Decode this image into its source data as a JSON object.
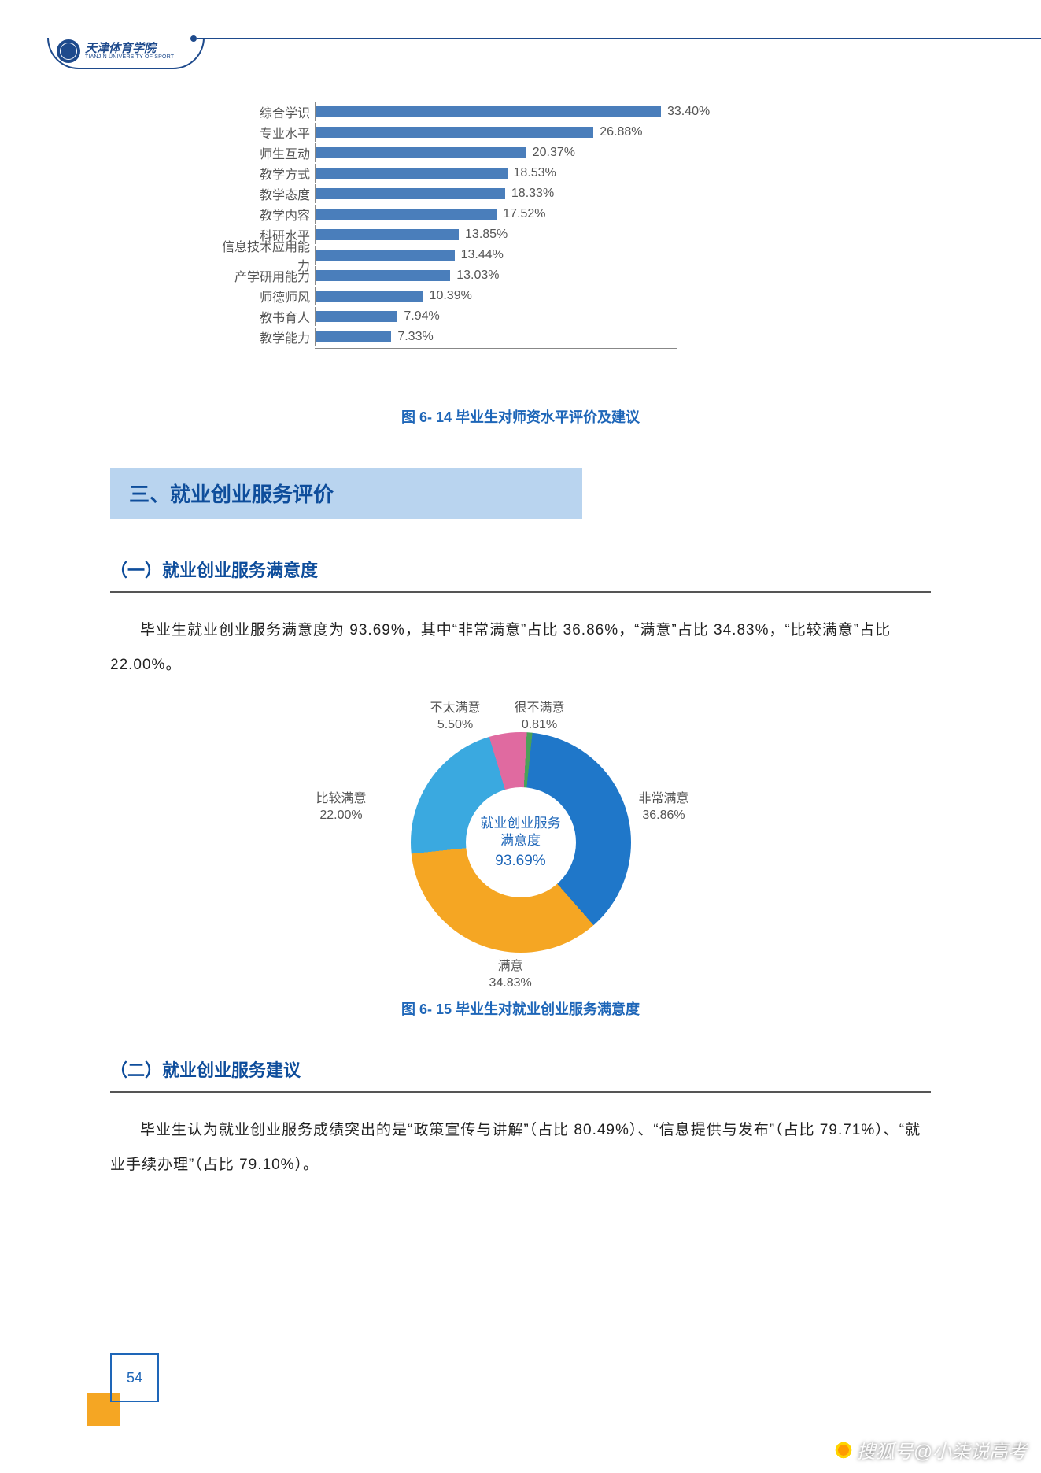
{
  "header": {
    "logo_cn": "天津体育学院",
    "logo_en": "TIANJIN UNIVERSITY OF SPORT"
  },
  "bar_chart": {
    "type": "bar",
    "max_percent": 35,
    "bar_color": "#4a7ebb",
    "axis_color": "#888888",
    "label_fontsize": 16,
    "items": [
      {
        "label": "综合学识",
        "value": 33.4
      },
      {
        "label": "专业水平",
        "value": 26.88
      },
      {
        "label": "师生互动",
        "value": 20.37
      },
      {
        "label": "教学方式",
        "value": 18.53
      },
      {
        "label": "教学态度",
        "value": 18.33
      },
      {
        "label": "教学内容",
        "value": 17.52
      },
      {
        "label": "科研水平",
        "value": 13.85
      },
      {
        "label": "信息技术应用能力",
        "value": 13.44
      },
      {
        "label": "产学研用能力",
        "value": 13.03
      },
      {
        "label": "师德师风",
        "value": 10.39
      },
      {
        "label": "教书育人",
        "value": 7.94
      },
      {
        "label": "教学能力",
        "value": 7.33
      }
    ],
    "caption": "图 6- 14 毕业生对师资水平评价及建议"
  },
  "section3": {
    "title": "三、就业创业服务评价",
    "sub1": {
      "heading": "（一）就业创业服务满意度",
      "paragraph": "毕业生就业创业服务满意度为 93.69%，其中“非常满意”占比 36.86%，“满意”占比 34.83%，“比较满意”占比 22.00%。"
    },
    "donut": {
      "type": "donut",
      "center_title": "就业创业服务\n满意度",
      "center_title_line1": "就业创业服务",
      "center_title_line2": "满意度",
      "center_value": "93.69%",
      "background_color": "#ffffff",
      "hole_ratio": 0.5,
      "slices": [
        {
          "label": "非常满意",
          "value": 36.86,
          "color": "#1f77c9"
        },
        {
          "label": "满意",
          "value": 34.83,
          "color": "#f5a623"
        },
        {
          "label": "比较满意",
          "value": 22.0,
          "color": "#3aa9e0"
        },
        {
          "label": "不太满意",
          "value": 5.5,
          "color": "#e06aa0"
        },
        {
          "label": "很不满意",
          "value": 0.81,
          "color": "#4aa158"
        }
      ],
      "caption": "图 6- 15 毕业生对就业创业服务满意度"
    },
    "sub2": {
      "heading": "（二）就业创业服务建议",
      "paragraph": "毕业生认为就业创业服务成绩突出的是“政策宣传与讲解”（占比 80.49%）、“信息提供与发布”（占比 79.71%）、“就业手续办理”（占比 79.10%）。"
    }
  },
  "page_number": "54",
  "watermark": "搜狐号@小柒说高考",
  "colors": {
    "brand_blue": "#1e4a8c",
    "heading_blue": "#0e4d9b",
    "caption_blue": "#1e66b8",
    "band_bg": "#b9d4ef",
    "accent_orange": "#f5a623"
  }
}
